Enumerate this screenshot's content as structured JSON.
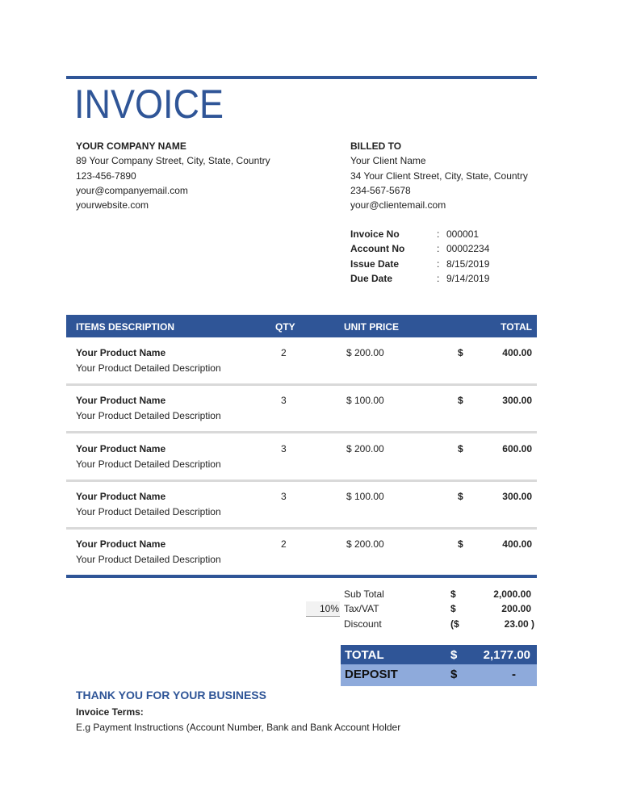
{
  "title": "INVOICE",
  "company": {
    "name": "YOUR COMPANY NAME",
    "address": "89 Your Company Street, City, State, Country",
    "phone": "123-456-7890",
    "email": "your@companyemail.com",
    "website": "yourwebsite.com"
  },
  "billed_to": {
    "label": "BILLED TO",
    "name": "Your Client Name",
    "address": "34 Your Client Street, City, State, Country",
    "phone": "234-567-5678",
    "email": "your@clientemail.com"
  },
  "meta": [
    {
      "label": "Invoice No",
      "value": "000001"
    },
    {
      "label": "Account No",
      "value": "00002234"
    },
    {
      "label": "Issue Date",
      "value": "8/15/2019"
    },
    {
      "label": "Due Date",
      "value": "9/14/2019"
    }
  ],
  "meta_separator": ":",
  "table": {
    "headers": {
      "description": "ITEMS DESCRIPTION",
      "qty": "QTY",
      "unit_price": "UNIT PRICE",
      "total": "TOTAL"
    },
    "rows": [
      {
        "name": "Your Product Name",
        "desc": "Your Product Detailed Description",
        "qty": "2",
        "unit_price": "$ 200.00",
        "currency": "$",
        "total": "400.00"
      },
      {
        "name": "Your Product Name",
        "desc": "Your Product Detailed Description",
        "qty": "3",
        "unit_price": "$ 100.00",
        "currency": "$",
        "total": "300.00"
      },
      {
        "name": "Your Product Name",
        "desc": "Your Product Detailed Description",
        "qty": "3",
        "unit_price": "$ 200.00",
        "currency": "$",
        "total": "600.00"
      },
      {
        "name": "Your Product Name",
        "desc": "Your Product Detailed Description",
        "qty": "3",
        "unit_price": "$ 100.00",
        "currency": "$",
        "total": "300.00"
      },
      {
        "name": "Your Product Name",
        "desc": "Your Product Detailed Description",
        "qty": "2",
        "unit_price": "$ 200.00",
        "currency": "$",
        "total": "400.00"
      }
    ]
  },
  "summary": {
    "subtotal": {
      "label": "Sub Total",
      "currency": "$",
      "value": "2,000.00"
    },
    "tax": {
      "rate": "10%",
      "label": "Tax/VAT",
      "currency": "$",
      "value": "200.00"
    },
    "discount": {
      "label": "Discount",
      "currency": "($",
      "value": "23.00 )"
    },
    "total": {
      "label": "TOTAL",
      "currency": "$",
      "value": "2,177.00"
    },
    "deposit": {
      "label": "DEPOSIT",
      "currency": "$",
      "value": "-"
    }
  },
  "footer": {
    "thanks": "THANK YOU FOR YOUR BUSINESS",
    "terms_label": "Invoice Terms:",
    "terms_text": "E.g Payment Instructions (Account Number, Bank and Bank Account Holder"
  },
  "colors": {
    "primary": "#2f5597",
    "deposit": "#8eaadb",
    "separator": "#d9d9d9"
  }
}
